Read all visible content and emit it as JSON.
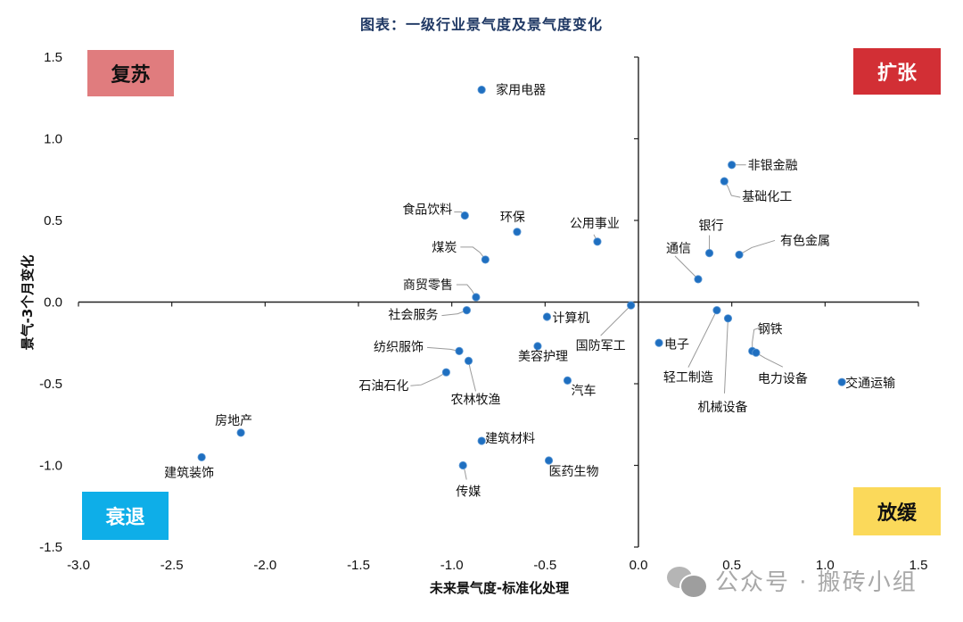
{
  "title": "图表：一级行业景气度及景气度变化",
  "quadrants": {
    "top_left": {
      "label": "复苏",
      "bg": "#e07c7e",
      "color": "#111111"
    },
    "top_right": {
      "label": "扩张",
      "bg": "#d22f35",
      "color": "#ffffff"
    },
    "bottom_left": {
      "label": "衰退",
      "bg": "#0eaee8",
      "color": "#ffffff"
    },
    "bottom_right": {
      "label": "放缓",
      "bg": "#fbd95a",
      "color": "#111111"
    }
  },
  "watermark": "公众号 · 搬砖小组",
  "chart_data": {
    "type": "scatter",
    "title": "图表：一级行业景气度及景气度变化",
    "xlabel": "未来景气度-标准化处理",
    "ylabel": "景气-3个月变化",
    "xlim": [
      -3.0,
      1.5
    ],
    "ylim": [
      -1.5,
      1.5
    ],
    "xticks": [
      "-3.0",
      "-2.5",
      "-2.0",
      "-1.5",
      "-1.0",
      "-0.5",
      "0.0",
      "0.5",
      "1.0",
      "1.5"
    ],
    "yticks": [
      "1.5",
      "1.0",
      "0.5",
      "0.0",
      "-0.5",
      "-1.0",
      "-1.5"
    ],
    "grid": false,
    "marker_color": "#1f6fc0",
    "points": [
      {
        "name": "家用电器",
        "x": -0.84,
        "y": 1.3
      },
      {
        "name": "非银金融",
        "x": 0.5,
        "y": 0.84
      },
      {
        "name": "基础化工",
        "x": 0.46,
        "y": 0.74
      },
      {
        "name": "食品饮料",
        "x": -0.93,
        "y": 0.53
      },
      {
        "name": "环保",
        "x": -0.65,
        "y": 0.43
      },
      {
        "name": "公用事业",
        "x": -0.22,
        "y": 0.37
      },
      {
        "name": "煤炭",
        "x": -0.82,
        "y": 0.26
      },
      {
        "name": "银行",
        "x": 0.38,
        "y": 0.3
      },
      {
        "name": "有色金属",
        "x": 0.54,
        "y": 0.29
      },
      {
        "name": "通信",
        "x": 0.32,
        "y": 0.14
      },
      {
        "name": "商贸零售",
        "x": -0.87,
        "y": 0.03
      },
      {
        "name": "国防军工",
        "x": -0.04,
        "y": -0.02
      },
      {
        "name": "社会服务",
        "x": -0.92,
        "y": -0.05
      },
      {
        "name": "计算机",
        "x": -0.49,
        "y": -0.09
      },
      {
        "name": "轻工制造",
        "x": 0.42,
        "y": -0.05
      },
      {
        "name": "机械设备",
        "x": 0.48,
        "y": -0.1
      },
      {
        "name": "电子",
        "x": 0.11,
        "y": -0.25
      },
      {
        "name": "钢铁",
        "x": 0.61,
        "y": -0.3
      },
      {
        "name": "电力设备",
        "x": 0.63,
        "y": -0.31
      },
      {
        "name": "纺织服饰",
        "x": -0.96,
        "y": -0.3
      },
      {
        "name": "美容护理",
        "x": -0.54,
        "y": -0.27
      },
      {
        "name": "农林牧渔",
        "x": -0.91,
        "y": -0.36
      },
      {
        "name": "石油石化",
        "x": -1.03,
        "y": -0.43
      },
      {
        "name": "汽车",
        "x": -0.38,
        "y": -0.48
      },
      {
        "name": "交通运输",
        "x": 1.09,
        "y": -0.49
      },
      {
        "name": "房地产",
        "x": -2.13,
        "y": -0.8
      },
      {
        "name": "建筑材料",
        "x": -0.84,
        "y": -0.85
      },
      {
        "name": "建筑装饰",
        "x": -2.34,
        "y": -0.95
      },
      {
        "name": "医药生物",
        "x": -0.48,
        "y": -0.97
      },
      {
        "name": "传媒",
        "x": -0.94,
        "y": -1.0
      }
    ]
  }
}
